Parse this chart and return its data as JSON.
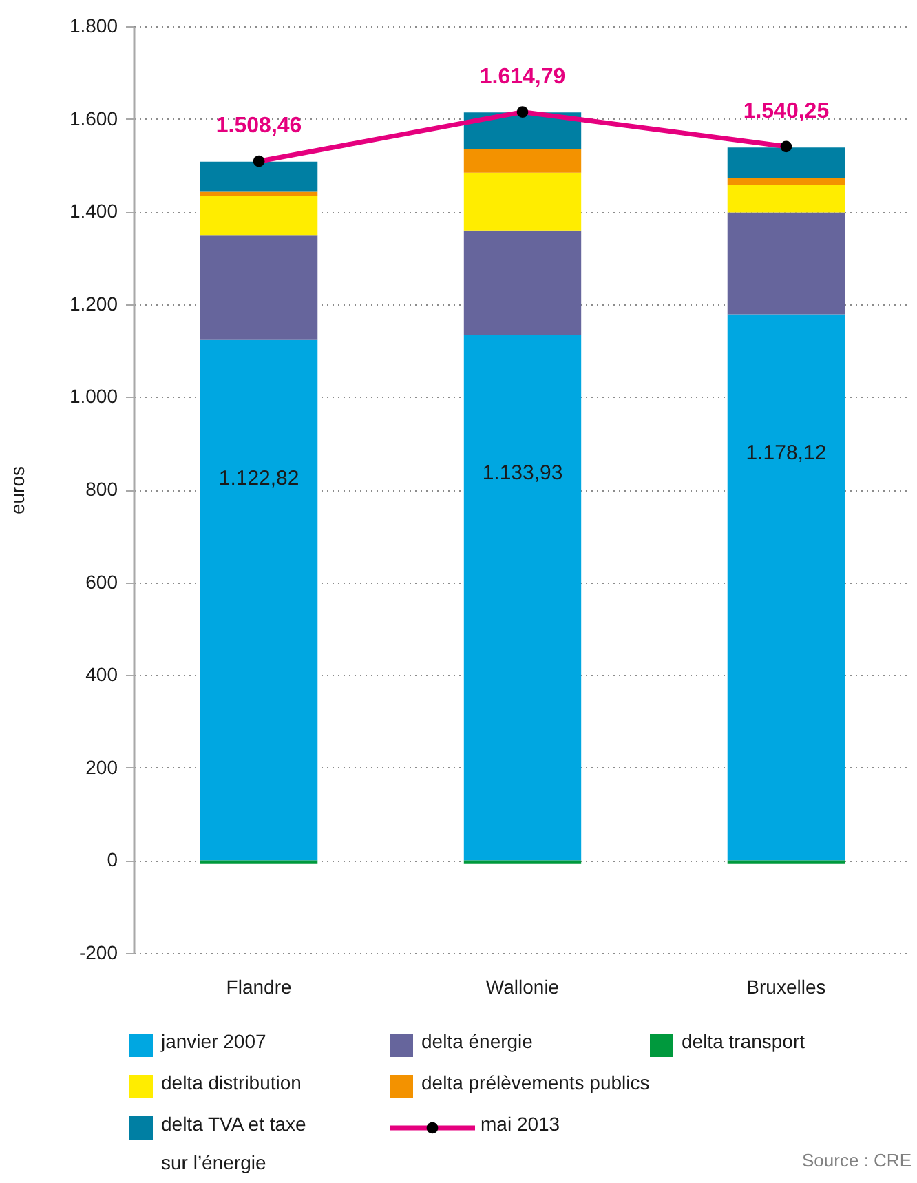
{
  "chart_data": {
    "type": "bar",
    "stacked": true,
    "ylabel": "euros",
    "categories": [
      "Flandre",
      "Wallonie",
      "Bruxelles"
    ],
    "series": [
      {
        "name": "janvier 2007",
        "color": "#00a7e1",
        "values": [
          1122.82,
          1133.93,
          1178.12
        ],
        "value_labels": [
          "1.122,82",
          "1.133,93",
          "1.178,12"
        ]
      },
      {
        "name": "delta énergie",
        "color": "#66659c",
        "values": [
          225,
          225,
          220
        ]
      },
      {
        "name": "delta transport",
        "color": "#00993d",
        "values": [
          -8,
          -8,
          -8
        ]
      },
      {
        "name": "delta distribution",
        "color": "#ffed00",
        "values": [
          85,
          125,
          60
        ]
      },
      {
        "name": "delta prélèvements publics",
        "color": "#f39200",
        "values": [
          10,
          50,
          15
        ]
      },
      {
        "name": "delta TVA et taxe sur l’énergie",
        "color": "#007fa3",
        "values": [
          65,
          80,
          65
        ]
      },
      {
        "name": "mai 2013",
        "type": "line",
        "color": "#e5007e",
        "marker": "circle",
        "line_style": "solid",
        "values": [
          1508.46,
          1614.79,
          1540.25
        ],
        "value_labels": [
          "1.508,46",
          "1.614,79",
          "1.540,25"
        ]
      }
    ],
    "ylim": [
      -200,
      1800
    ],
    "yticks": [
      -200,
      0,
      200,
      400,
      600,
      800,
      {
        "value": 1000,
        "label": "1.000"
      },
      {
        "value": 1200,
        "label": "1.200"
      },
      {
        "value": 1400,
        "label": "1.400"
      },
      {
        "value": 1600,
        "label": "1.600"
      },
      {
        "value": 1800,
        "label": "1.800"
      }
    ],
    "grid": "y",
    "legend": "bottom",
    "annotations": [
      "Source : CRE"
    ]
  }
}
